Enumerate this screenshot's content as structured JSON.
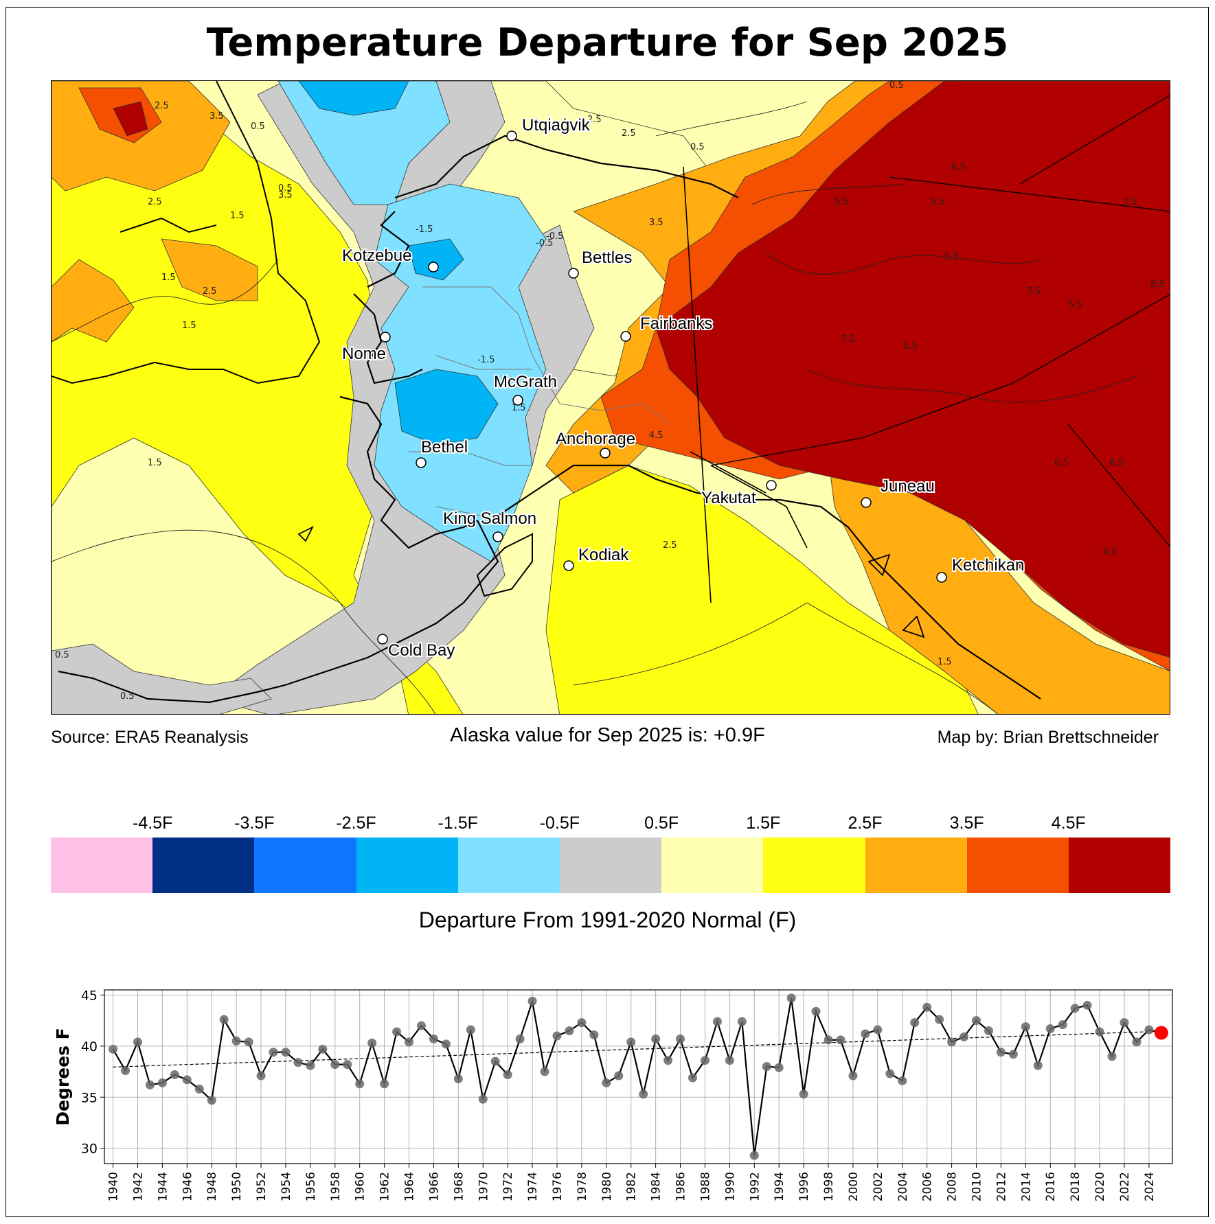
{
  "title": "Temperature Departure for Sep 2025",
  "map": {
    "cities": [
      {
        "name": "Utqiaġvik"
      },
      {
        "name": "Kotzebue"
      },
      {
        "name": "Bettles"
      },
      {
        "name": "Fairbanks"
      },
      {
        "name": "Nome"
      },
      {
        "name": "McGrath"
      },
      {
        "name": "Bethel"
      },
      {
        "name": "Anchorage"
      },
      {
        "name": "Yakutat"
      },
      {
        "name": "Juneau"
      },
      {
        "name": "King Salmon"
      },
      {
        "name": "Kodiak"
      },
      {
        "name": "Ketchikan"
      },
      {
        "name": "Cold Bay"
      }
    ],
    "contour_labels": [
      "2.5",
      "3.5",
      "0.5",
      "2.5",
      "0.5",
      "1.5",
      "1.5",
      "1.5",
      "2.5",
      "-1.5",
      "-0.5",
      "-1.5",
      "3.5",
      "6.5",
      "5.5",
      "5.5",
      "7.5",
      "5.5",
      "7.5",
      "8.5",
      "5.5",
      "7.5",
      "4.5",
      "2.5",
      "1.5",
      "0.5",
      "4.5",
      "0.5",
      "1.5",
      "3.5",
      "2.5",
      "-0.5",
      "0.5",
      "5.5",
      "6.5",
      "1.5",
      "6.5",
      "2.5",
      "0.5"
    ]
  },
  "footer": {
    "source": "Source: ERA5 Reanalysis",
    "alaska_value": "Alaska value for Sep 2025 is: +0.9F",
    "map_by": "Map by: Brian Brettschneider"
  },
  "colorbar": {
    "colors": [
      "#ffc0e8",
      "#002f86",
      "#0f77ff",
      "#00b4f6",
      "#7fe1ff",
      "#cccccc",
      "#ffffb1",
      "#ffff11",
      "#ffad11",
      "#f55002",
      "#b00000"
    ],
    "labels": [
      "-4.5F",
      "-3.5F",
      "-2.5F",
      "-1.5F",
      "-0.5F",
      "0.5F",
      "1.5F",
      "2.5F",
      "3.5F",
      "4.5F"
    ],
    "title": "Departure From 1991-2020 Normal (F)"
  },
  "map_colors": {
    "ocean_light": "#ffffb1",
    "yellow": "#ffff11",
    "gray": "#cccccc",
    "light_blue": "#7fe1ff",
    "blue": "#00b4f6",
    "orange": "#ffad11",
    "red_orange": "#f55002",
    "dark_red": "#b00000"
  },
  "chart_data": {
    "type": "line",
    "ylabel": "Degrees F",
    "xlabel": "",
    "ylim": [
      28.5,
      45.5
    ],
    "xlim": [
      1939.3,
      2025.9
    ],
    "yticks": [
      30,
      35,
      40,
      45
    ],
    "xticks": [
      1940,
      1942,
      1944,
      1946,
      1948,
      1950,
      1952,
      1954,
      1956,
      1958,
      1960,
      1962,
      1964,
      1966,
      1968,
      1970,
      1972,
      1974,
      1976,
      1978,
      1980,
      1982,
      1984,
      1986,
      1988,
      1990,
      1992,
      1994,
      1996,
      1998,
      2000,
      2002,
      2004,
      2006,
      2008,
      2010,
      2012,
      2014,
      2016,
      2018,
      2020,
      2022,
      2024
    ],
    "grid": true,
    "x": [
      1940,
      1941,
      1942,
      1943,
      1944,
      1945,
      1946,
      1947,
      1948,
      1949,
      1950,
      1951,
      1952,
      1953,
      1954,
      1955,
      1956,
      1957,
      1958,
      1959,
      1960,
      1961,
      1962,
      1963,
      1964,
      1965,
      1966,
      1967,
      1968,
      1969,
      1970,
      1971,
      1972,
      1973,
      1974,
      1975,
      1976,
      1977,
      1978,
      1979,
      1980,
      1981,
      1982,
      1983,
      1984,
      1985,
      1986,
      1987,
      1988,
      1989,
      1990,
      1991,
      1992,
      1993,
      1994,
      1995,
      1996,
      1997,
      1998,
      1999,
      2000,
      2001,
      2002,
      2003,
      2004,
      2005,
      2006,
      2007,
      2008,
      2009,
      2010,
      2011,
      2012,
      2013,
      2014,
      2015,
      2016,
      2017,
      2018,
      2019,
      2020,
      2021,
      2022,
      2023,
      2024,
      2025
    ],
    "values": [
      39.7,
      37.6,
      40.4,
      36.2,
      36.4,
      37.2,
      36.7,
      35.8,
      34.7,
      42.6,
      40.5,
      40.4,
      37.1,
      39.4,
      39.4,
      38.4,
      38.1,
      39.7,
      38.2,
      38.2,
      36.3,
      40.3,
      36.3,
      41.4,
      40.4,
      42.0,
      40.7,
      40.2,
      36.8,
      41.6,
      34.8,
      38.5,
      37.2,
      40.7,
      44.4,
      37.5,
      41.0,
      41.5,
      42.3,
      41.1,
      36.4,
      37.1,
      40.4,
      35.3,
      40.7,
      38.6,
      40.7,
      36.9,
      38.6,
      42.4,
      38.6,
      42.4,
      29.3,
      38.0,
      37.9,
      44.7,
      35.3,
      43.4,
      40.6,
      40.6,
      37.1,
      41.2,
      41.6,
      37.3,
      36.6,
      42.3,
      43.8,
      42.6,
      40.4,
      40.9,
      42.5,
      41.5,
      39.4,
      39.2,
      41.9,
      38.1,
      41.7,
      42.1,
      43.7,
      44.0,
      41.4,
      39.0,
      42.3,
      40.4,
      41.6,
      41.3
    ],
    "trend": {
      "start": [
        1940,
        37.95
      ],
      "end": [
        2025,
        41.45
      ]
    },
    "highlight": {
      "year": 2025,
      "value": 41.3,
      "color": "#ff0000"
    }
  }
}
